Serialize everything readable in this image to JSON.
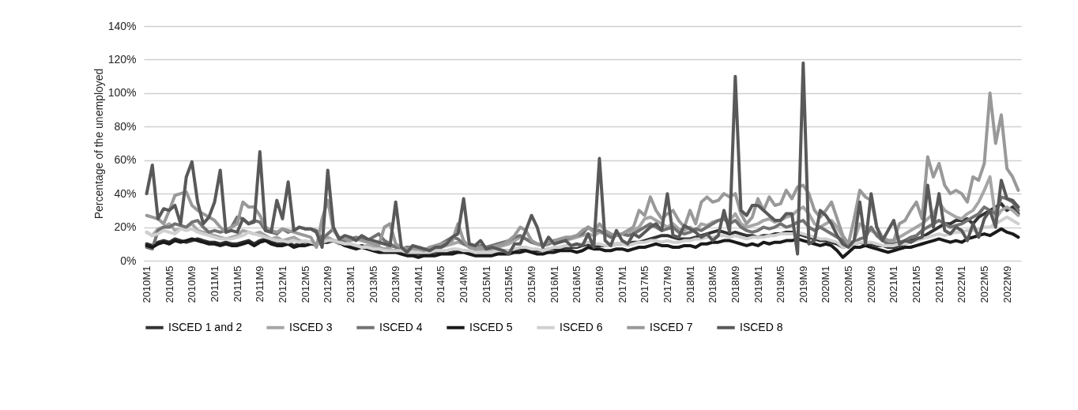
{
  "chart_data": {
    "type": "line",
    "ylabel": "Percentage of the unemployed",
    "categories": [
      "2010M1",
      null,
      null,
      null,
      "2010M5",
      null,
      null,
      null,
      "2010M9",
      null,
      null,
      null,
      "2011M1",
      null,
      null,
      null,
      "2011M5",
      null,
      null,
      null,
      "2011M9",
      null,
      null,
      null,
      "2012M1",
      null,
      null,
      null,
      "2012M5",
      null,
      null,
      null,
      "2012M9",
      null,
      null,
      null,
      "2013M1",
      null,
      null,
      null,
      "2013M5",
      null,
      null,
      null,
      "2013M9",
      null,
      null,
      null,
      "2014M1",
      null,
      null,
      null,
      "2014M5",
      null,
      null,
      null,
      "2014M9",
      null,
      null,
      null,
      "2015M1",
      null,
      null,
      null,
      "2015M5",
      null,
      null,
      null,
      "2015M9",
      null,
      null,
      null,
      "2016M1",
      null,
      null,
      null,
      "2016M5",
      null,
      null,
      null,
      "2016M9",
      null,
      null,
      null,
      "2017M1",
      null,
      null,
      null,
      "2017M5",
      null,
      null,
      null,
      "2017M9",
      null,
      null,
      null,
      "2018M1",
      null,
      null,
      null,
      "2018M5",
      null,
      null,
      null,
      "2018M9",
      null,
      null,
      null,
      "2019M1",
      null,
      null,
      null,
      "2019M5",
      null,
      null,
      null,
      "2019M9",
      null,
      null,
      null,
      "2020M1",
      null,
      null,
      null,
      "2020M5",
      null,
      null,
      null,
      "2020M9",
      null,
      null,
      null,
      "2021M1",
      null,
      null,
      null,
      "2021M5",
      null,
      null,
      null,
      "2021M9",
      null,
      null,
      null,
      "2022M1",
      null,
      null,
      null,
      "2022M5",
      null,
      null,
      null,
      "2022M9",
      null,
      null
    ],
    "ylim": [
      0,
      140
    ],
    "yticks": [
      {
        "value": 0,
        "label": "0%"
      },
      {
        "value": 20,
        "label": "20%"
      },
      {
        "value": 40,
        "label": "40%"
      },
      {
        "value": 60,
        "label": "60%"
      },
      {
        "value": 80,
        "label": "80%"
      },
      {
        "value": 100,
        "label": "100%"
      },
      {
        "value": 120,
        "label": "120%"
      },
      {
        "value": 140,
        "label": "140%"
      }
    ],
    "grid": "y",
    "legend": "bottom",
    "marker": "none",
    "line_style": "solid",
    "series": [
      {
        "name": "ISCED 1 and 2",
        "color": "#333333",
        "values": [
          10,
          9,
          11,
          12,
          11,
          13,
          12,
          11,
          12,
          13,
          12,
          11,
          11,
          10,
          11,
          10,
          10,
          11,
          12,
          10,
          12,
          13,
          11,
          10,
          10,
          11,
          9,
          10,
          10,
          11,
          10,
          11,
          12,
          12,
          11,
          10,
          9,
          8,
          9,
          8,
          7,
          6,
          6,
          6,
          6,
          5,
          5,
          4,
          4,
          4,
          4,
          5,
          5,
          5,
          5,
          6,
          6,
          5,
          5,
          5,
          5,
          5,
          5,
          6,
          6,
          6,
          7,
          7,
          6,
          6,
          6,
          7,
          7,
          7,
          8,
          8,
          8,
          9,
          10,
          9,
          9,
          9,
          9,
          10,
          10,
          10,
          11,
          11,
          12,
          13,
          14,
          15,
          15,
          14,
          13,
          13,
          13,
          14,
          15,
          16,
          17,
          18,
          17,
          16,
          17,
          16,
          15,
          15,
          14,
          15,
          15,
          16,
          16,
          17,
          17,
          16,
          15,
          14,
          13,
          12,
          12,
          11,
          10,
          8,
          9,
          10,
          11,
          10,
          10,
          9,
          9,
          8,
          8,
          9,
          10,
          12,
          13,
          14,
          16,
          18,
          20,
          22,
          22,
          24,
          24,
          25,
          22,
          26,
          28,
          30,
          32,
          34,
          30,
          32,
          28
        ]
      },
      {
        "name": "ISCED 3",
        "color": "#a6a6a6",
        "values": [
          17,
          15,
          19,
          20,
          22,
          18,
          19,
          20,
          22,
          18,
          17,
          16,
          15,
          14,
          13,
          14,
          15,
          18,
          17,
          16,
          17,
          15,
          13,
          14,
          12,
          13,
          14,
          12,
          11,
          10,
          9,
          12,
          14,
          12,
          10,
          11,
          10,
          9,
          8,
          9,
          8,
          8,
          7,
          8,
          9,
          7,
          6,
          7,
          6,
          7,
          6,
          7,
          8,
          9,
          10,
          11,
          10,
          8,
          7,
          7,
          6,
          7,
          8,
          9,
          10,
          12,
          14,
          13,
          11,
          10,
          9,
          10,
          11,
          12,
          12,
          13,
          14,
          15,
          16,
          15,
          17,
          16,
          14,
          15,
          16,
          17,
          18,
          20,
          25,
          26,
          24,
          22,
          20,
          22,
          19,
          18,
          20,
          18,
          22,
          21,
          23,
          24,
          25,
          24,
          28,
          22,
          20,
          21,
          22,
          24,
          25,
          23,
          24,
          26,
          27,
          30,
          32,
          28,
          22,
          20,
          22,
          24,
          20,
          14,
          10,
          12,
          22,
          20,
          18,
          16,
          14,
          12,
          12,
          14,
          16,
          18,
          20,
          22,
          25,
          28,
          35,
          30,
          28,
          26,
          25,
          28,
          30,
          35,
          42,
          50,
          25,
          30,
          32,
          30,
          27
        ]
      },
      {
        "name": "ISCED 4",
        "color": "#737373",
        "values": [
          8,
          7,
          18,
          20,
          20,
          22,
          21,
          20,
          23,
          24,
          20,
          17,
          18,
          17,
          18,
          20,
          26,
          25,
          22,
          24,
          23,
          18,
          17,
          16,
          19,
          17,
          18,
          20,
          19,
          19,
          18,
          13,
          16,
          19,
          13,
          12,
          13,
          14,
          13,
          12,
          14,
          16,
          12,
          10,
          8,
          7,
          8,
          8,
          8,
          7,
          7,
          8,
          10,
          12,
          14,
          13,
          10,
          9,
          8,
          9,
          8,
          9,
          10,
          11,
          12,
          14,
          15,
          13,
          11,
          10,
          9,
          10,
          12,
          12,
          13,
          14,
          15,
          16,
          20,
          18,
          18,
          16,
          14,
          15,
          16,
          15,
          16,
          18,
          20,
          22,
          20,
          18,
          19,
          20,
          17,
          16,
          17,
          19,
          18,
          20,
          22,
          24,
          25,
          22,
          24,
          20,
          18,
          17,
          18,
          20,
          19,
          20,
          22,
          20,
          21,
          23,
          24,
          20,
          18,
          20,
          18,
          16,
          14,
          12,
          10,
          11,
          13,
          14,
          20,
          15,
          12,
          10,
          10,
          11,
          12,
          14,
          15,
          18,
          20,
          22,
          24,
          22,
          20,
          21,
          22,
          24,
          26,
          28,
          32,
          30,
          28,
          38,
          37,
          35,
          30
        ]
      },
      {
        "name": "ISCED 5",
        "color": "#1a1a1a",
        "values": [
          9,
          8,
          10,
          11,
          10,
          12,
          11,
          12,
          13,
          12,
          11,
          10,
          10,
          9,
          10,
          9,
          9,
          10,
          11,
          9,
          11,
          12,
          10,
          9,
          9,
          10,
          8,
          9,
          9,
          10,
          10,
          11,
          11,
          12,
          11,
          9,
          8,
          7,
          8,
          7,
          6,
          5,
          5,
          5,
          5,
          4,
          3,
          3,
          2,
          3,
          3,
          3,
          4,
          4,
          4,
          5,
          5,
          4,
          3,
          3,
          3,
          3,
          4,
          4,
          4,
          5,
          5,
          6,
          5,
          4,
          4,
          5,
          5,
          6,
          6,
          6,
          5,
          6,
          8,
          7,
          7,
          6,
          6,
          7,
          7,
          6,
          7,
          8,
          8,
          9,
          10,
          9,
          9,
          8,
          8,
          9,
          9,
          8,
          10,
          10,
          11,
          11,
          12,
          12,
          11,
          10,
          9,
          10,
          9,
          11,
          10,
          11,
          11,
          12,
          12,
          13,
          12,
          11,
          10,
          9,
          10,
          9,
          6,
          2,
          5,
          8,
          8,
          9,
          8,
          7,
          6,
          5,
          6,
          7,
          8,
          8,
          9,
          10,
          11,
          12,
          13,
          12,
          11,
          12,
          11,
          13,
          14,
          15,
          16,
          15,
          17,
          19,
          17,
          16,
          14
        ]
      },
      {
        "name": "ISCED 6",
        "color": "#d0d0d0",
        "values": [
          17,
          15,
          16,
          18,
          17,
          16,
          19,
          18,
          19,
          17,
          16,
          15,
          14,
          13,
          13,
          13,
          14,
          15,
          17,
          16,
          15,
          14,
          13,
          12,
          12,
          11,
          12,
          11,
          12,
          11,
          10,
          11,
          12,
          12,
          11,
          10,
          10,
          9,
          8,
          8,
          7,
          7,
          6,
          6,
          6,
          6,
          5,
          5,
          5,
          5,
          5,
          6,
          6,
          6,
          7,
          7,
          6,
          6,
          5,
          5,
          5,
          5,
          6,
          6,
          6,
          7,
          8,
          8,
          7,
          7,
          6,
          7,
          8,
          8,
          9,
          9,
          9,
          10,
          11,
          10,
          10,
          9,
          9,
          10,
          10,
          9,
          10,
          11,
          11,
          12,
          12,
          11,
          12,
          11,
          11,
          12,
          12,
          13,
          13,
          14,
          14,
          15,
          15,
          14,
          15,
          14,
          13,
          14,
          14,
          14,
          15,
          15,
          16,
          16,
          16,
          17,
          16,
          15,
          14,
          13,
          13,
          12,
          11,
          8,
          9,
          10,
          11,
          11,
          11,
          10,
          9,
          9,
          9,
          10,
          10,
          11,
          12,
          13,
          14,
          15,
          16,
          15,
          16,
          17,
          17,
          18,
          18,
          19,
          20,
          20,
          22,
          24,
          26,
          24,
          22
        ]
      },
      {
        "name": "ISCED 7",
        "color": "#999999",
        "values": [
          27,
          26,
          25,
          22,
          30,
          39,
          40,
          41,
          33,
          30,
          28,
          26,
          24,
          20,
          17,
          20,
          22,
          35,
          32,
          32,
          27,
          20,
          18,
          17,
          19,
          18,
          17,
          16,
          15,
          14,
          8,
          25,
          36,
          18,
          14,
          13,
          12,
          13,
          12,
          11,
          10,
          9,
          20,
          22,
          10,
          8,
          7,
          8,
          7,
          6,
          8,
          9,
          10,
          11,
          12,
          22,
          12,
          8,
          7,
          8,
          7,
          8,
          9,
          10,
          12,
          15,
          20,
          18,
          12,
          10,
          9,
          11,
          12,
          13,
          14,
          14,
          15,
          18,
          20,
          17,
          22,
          18,
          16,
          15,
          16,
          18,
          20,
          30,
          27,
          38,
          30,
          25,
          28,
          30,
          24,
          20,
          30,
          22,
          35,
          38,
          35,
          36,
          40,
          38,
          40,
          28,
          22,
          26,
          37,
          30,
          38,
          33,
          34,
          42,
          37,
          44,
          45,
          40,
          30,
          26,
          30,
          35,
          25,
          15,
          10,
          25,
          42,
          38,
          36,
          20,
          14,
          12,
          12,
          22,
          24,
          30,
          35,
          25,
          62,
          50,
          58,
          45,
          40,
          42,
          40,
          35,
          50,
          48,
          58,
          100,
          70,
          87,
          55,
          50,
          42
        ]
      },
      {
        "name": "ISCED 8",
        "color": "#595959",
        "values": [
          40,
          57,
          25,
          31,
          30,
          33,
          22,
          50,
          59,
          35,
          22,
          26,
          35,
          54,
          17,
          18,
          17,
          25,
          22,
          23,
          65,
          18,
          17,
          36,
          25,
          47,
          18,
          20,
          19,
          19,
          17,
          8,
          54,
          20,
          13,
          15,
          14,
          12,
          15,
          13,
          12,
          11,
          10,
          9,
          35,
          8,
          5,
          9,
          8,
          7,
          6,
          8,
          8,
          10,
          14,
          16,
          37,
          10,
          9,
          12,
          7,
          8,
          7,
          6,
          4,
          10,
          10,
          18,
          27,
          20,
          8,
          14,
          10,
          11,
          12,
          9,
          10,
          9,
          16,
          8,
          61,
          12,
          9,
          18,
          12,
          10,
          16,
          14,
          17,
          20,
          22,
          18,
          40,
          15,
          14,
          21,
          19,
          17,
          14,
          16,
          12,
          15,
          30,
          17,
          110,
          30,
          27,
          33,
          33,
          30,
          27,
          24,
          24,
          28,
          28,
          4,
          118,
          10,
          12,
          30,
          27,
          22,
          15,
          10,
          8,
          12,
          35,
          10,
          40,
          20,
          12,
          18,
          24,
          10,
          12,
          11,
          13,
          14,
          45,
          20,
          40,
          18,
          16,
          20,
          18,
          12,
          22,
          14,
          25,
          30,
          20,
          48,
          37,
          36,
          32
        ]
      }
    ]
  }
}
